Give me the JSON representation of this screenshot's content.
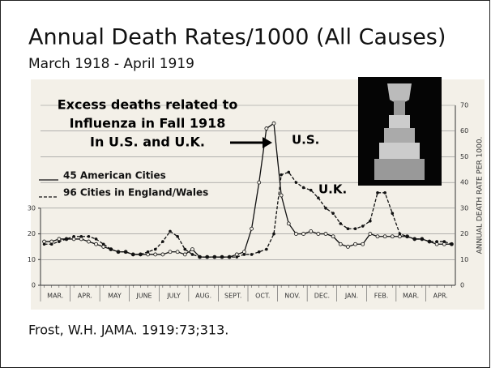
{
  "title": "Annual Death Rates/1000 (All Causes)",
  "subtitle": "March 1918 - April 1919",
  "source": "Frost, W.H. JAMA. 1919:73;313.",
  "chart_data": {
    "type": "line",
    "annotation_lines": [
      "Excess deaths related to",
      "Influenza in Fall 1918",
      "In U.S. and U.K."
    ],
    "us_label": "U.S.",
    "uk_label": "U.K.",
    "y_label": "ANNUAL DEATH RATE PER 1000.",
    "categories": [
      null,
      "MAR.",
      null,
      null,
      null,
      "APR.",
      null,
      null,
      null,
      "MAY",
      null,
      null,
      null,
      "JUNE",
      null,
      null,
      null,
      "JULY",
      null,
      null,
      null,
      "AUG.",
      null,
      null,
      null,
      "SEPT.",
      null,
      null,
      null,
      "OCT.",
      null,
      null,
      null,
      "NOV.",
      null,
      null,
      null,
      "DEC.",
      null,
      null,
      null,
      "JAN.",
      null,
      null,
      null,
      "FEB.",
      null,
      null,
      null,
      "MAR.",
      null,
      null,
      null,
      "APR.",
      null,
      null
    ],
    "series": [
      {
        "name": "45 American Cities",
        "color": "#111111",
        "style": "solid",
        "values": [
          17,
          17,
          18,
          18,
          18,
          18,
          17,
          16,
          15,
          14,
          13,
          13,
          12,
          12,
          12,
          12,
          12,
          13,
          13,
          12,
          14,
          11,
          11,
          11,
          11,
          11,
          12,
          13,
          22,
          40,
          61,
          63,
          35,
          24,
          20,
          20,
          21,
          20,
          20,
          19,
          16,
          15,
          16,
          16,
          20,
          19,
          19,
          19,
          19,
          19,
          18,
          18,
          17,
          16,
          16,
          16
        ]
      },
      {
        "name": "96 Cities in England/Wales",
        "color": "#111111",
        "style": "dashed",
        "values": [
          16,
          16,
          17,
          18,
          19,
          19,
          19,
          18,
          16,
          14,
          13,
          13,
          12,
          12,
          13,
          14,
          17,
          21,
          19,
          14,
          12,
          11,
          11,
          11,
          11,
          11,
          11,
          12,
          12,
          13,
          14,
          20,
          43,
          44,
          40,
          38,
          37,
          34,
          30,
          28,
          24,
          22,
          22,
          23,
          25,
          36,
          36,
          28,
          20,
          19,
          18,
          18,
          17,
          17,
          17,
          16
        ]
      }
    ],
    "ylim": [
      0,
      70
    ],
    "yticks": [
      0,
      10,
      20,
      30
    ],
    "y2lim": [
      0,
      70
    ],
    "y2ticks": [
      0,
      10,
      20,
      30,
      40,
      50,
      60,
      70
    ],
    "grid": true
  }
}
